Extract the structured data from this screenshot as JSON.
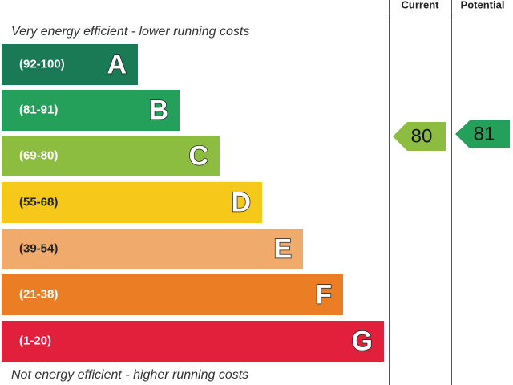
{
  "header": {
    "current": "Current",
    "potential": "Potential"
  },
  "top_note": "Very energy efficient - lower running costs",
  "bottom_note": "Not energy efficient - higher running costs",
  "bands": [
    {
      "range": "(92-100)",
      "letter": "A",
      "color": "#1a7a55"
    },
    {
      "range": "(81-91)",
      "letter": "B",
      "color": "#25a05b"
    },
    {
      "range": "(69-80)",
      "letter": "C",
      "color": "#8dbd40"
    },
    {
      "range": "(55-68)",
      "letter": "D",
      "color": "#f5c81a"
    },
    {
      "range": "(39-54)",
      "letter": "E",
      "color": "#f0aa6b"
    },
    {
      "range": "(21-38)",
      "letter": "F",
      "color": "#eb7e24"
    },
    {
      "range": "(1-20)",
      "letter": "G",
      "color": "#e2203c"
    }
  ],
  "current": {
    "rating": "80"
  },
  "potential": {
    "rating": "81"
  }
}
